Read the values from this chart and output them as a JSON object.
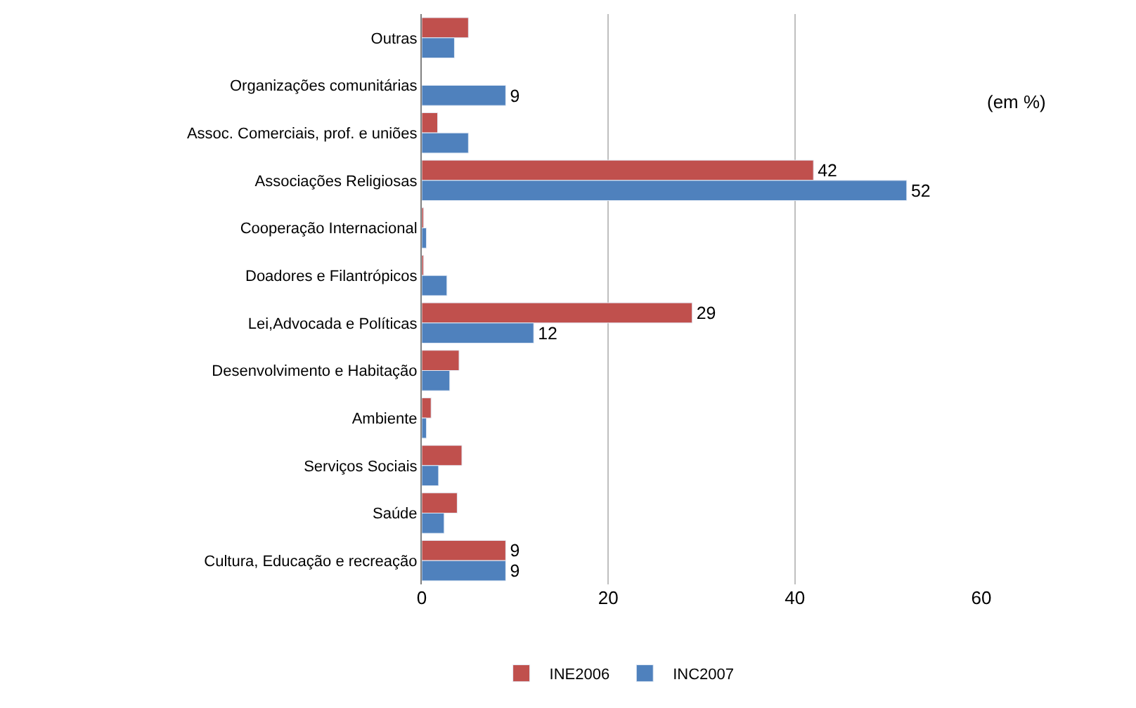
{
  "chart_data": {
    "type": "bar",
    "orientation": "horizontal",
    "categories": [
      "Outras",
      "Organizações comunitárias",
      "Assoc. Comerciais, prof. e uniões",
      "Associações Religiosas",
      "Cooperação Internacional",
      "Doadores e Filantrópicos",
      "Lei,Advocada e Políticas",
      "Desenvolvimento e Habitação",
      "Ambiente",
      "Serviços Sociais",
      "Saúde",
      "Cultura, Educação e recreação"
    ],
    "series": [
      {
        "name": "INE2006",
        "color": "#c0504d",
        "values": [
          5.0,
          null,
          1.7,
          42,
          0.2,
          0.2,
          29,
          4.0,
          1.0,
          4.3,
          3.8,
          9
        ],
        "value_labels": [
          null,
          null,
          null,
          "42",
          null,
          null,
          "29",
          null,
          null,
          null,
          null,
          "9"
        ]
      },
      {
        "name": "INC2007",
        "color": "#4f81bd",
        "values": [
          3.5,
          9,
          5.0,
          52,
          0.5,
          2.7,
          12,
          3.0,
          0.5,
          1.8,
          2.4,
          9
        ],
        "value_labels": [
          null,
          "9",
          null,
          "52",
          null,
          null,
          "12",
          null,
          null,
          null,
          null,
          "9"
        ]
      }
    ],
    "xlim": [
      0,
      60
    ],
    "xticks": [
      0,
      20,
      40,
      60
    ],
    "grid": "x",
    "legend": "bottom",
    "annotations": [
      "(em %)"
    ]
  }
}
